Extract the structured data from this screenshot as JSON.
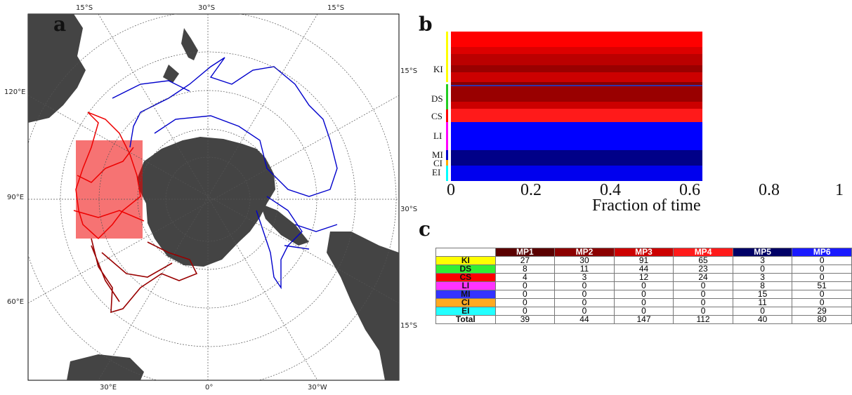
{
  "panels": {
    "a": "a",
    "b": "b",
    "c": "c"
  },
  "map": {
    "labels": {
      "top_left": "15°S",
      "top_mid": "30°S",
      "top_right": "15°S",
      "right_upper": "15°S",
      "right_mid": "30°S",
      "right_lower": "15°S",
      "left_upper": "120°E",
      "left_mid": "90°E",
      "left_lower": "60°E",
      "bottom_left": "30°E",
      "bottom_mid": "0°",
      "bottom_right": "30°W"
    },
    "colors": {
      "land": "#444444",
      "red_tracks": "#ee0000",
      "darkred_tracks": "#990000",
      "blue_tracks": "#0000cc"
    }
  },
  "chart_data": {
    "type": "area",
    "xlabel": "Fraction of time",
    "xlim": [
      0,
      1
    ],
    "xticks": [
      "0",
      "0.2",
      "0.4",
      "0.6",
      "0.8",
      "1"
    ],
    "groups": [
      {
        "name": "KI",
        "color": "#ffff00"
      },
      {
        "name": "DS",
        "color": "#22cc22"
      },
      {
        "name": "CS",
        "color": "#ff0000"
      },
      {
        "name": "LI",
        "color": "#ff00ff"
      },
      {
        "name": "MI",
        "color": "#0000cc"
      },
      {
        "name": "CI",
        "color": "#ffaa00"
      },
      {
        "name": "EI",
        "color": "#00ffff"
      }
    ]
  },
  "table": {
    "columns": [
      {
        "label": "MP1",
        "color": "#5a0000"
      },
      {
        "label": "MP2",
        "color": "#8b0000"
      },
      {
        "label": "MP3",
        "color": "#cc0000"
      },
      {
        "label": "MP4",
        "color": "#ff1a1a"
      },
      {
        "label": "MP5",
        "color": "#000066"
      },
      {
        "label": "MP6",
        "color": "#1a1aff"
      }
    ],
    "rows": [
      {
        "label": "KI",
        "color": "#ffff00",
        "values": [
          "27",
          "30",
          "91",
          "65",
          "3",
          "0"
        ]
      },
      {
        "label": "DS",
        "color": "#33ee33",
        "values": [
          "8",
          "11",
          "44",
          "23",
          "0",
          "0"
        ]
      },
      {
        "label": "CS",
        "color": "#ff0000",
        "values": [
          "4",
          "3",
          "12",
          "24",
          "3",
          "0"
        ]
      },
      {
        "label": "LI",
        "color": "#ff33ff",
        "values": [
          "0",
          "0",
          "0",
          "0",
          "8",
          "51"
        ]
      },
      {
        "label": "MI",
        "color": "#3333ff",
        "values": [
          "0",
          "0",
          "0",
          "0",
          "15",
          "0"
        ]
      },
      {
        "label": "CI",
        "color": "#ffaa22",
        "values": [
          "0",
          "0",
          "0",
          "0",
          "11",
          "0"
        ]
      },
      {
        "label": "EI",
        "color": "#22ffff",
        "values": [
          "0",
          "0",
          "0",
          "0",
          "0",
          "29"
        ]
      },
      {
        "label": "Total",
        "color": "#ffffff",
        "values": [
          "39",
          "44",
          "147",
          "112",
          "40",
          "80"
        ]
      }
    ]
  }
}
